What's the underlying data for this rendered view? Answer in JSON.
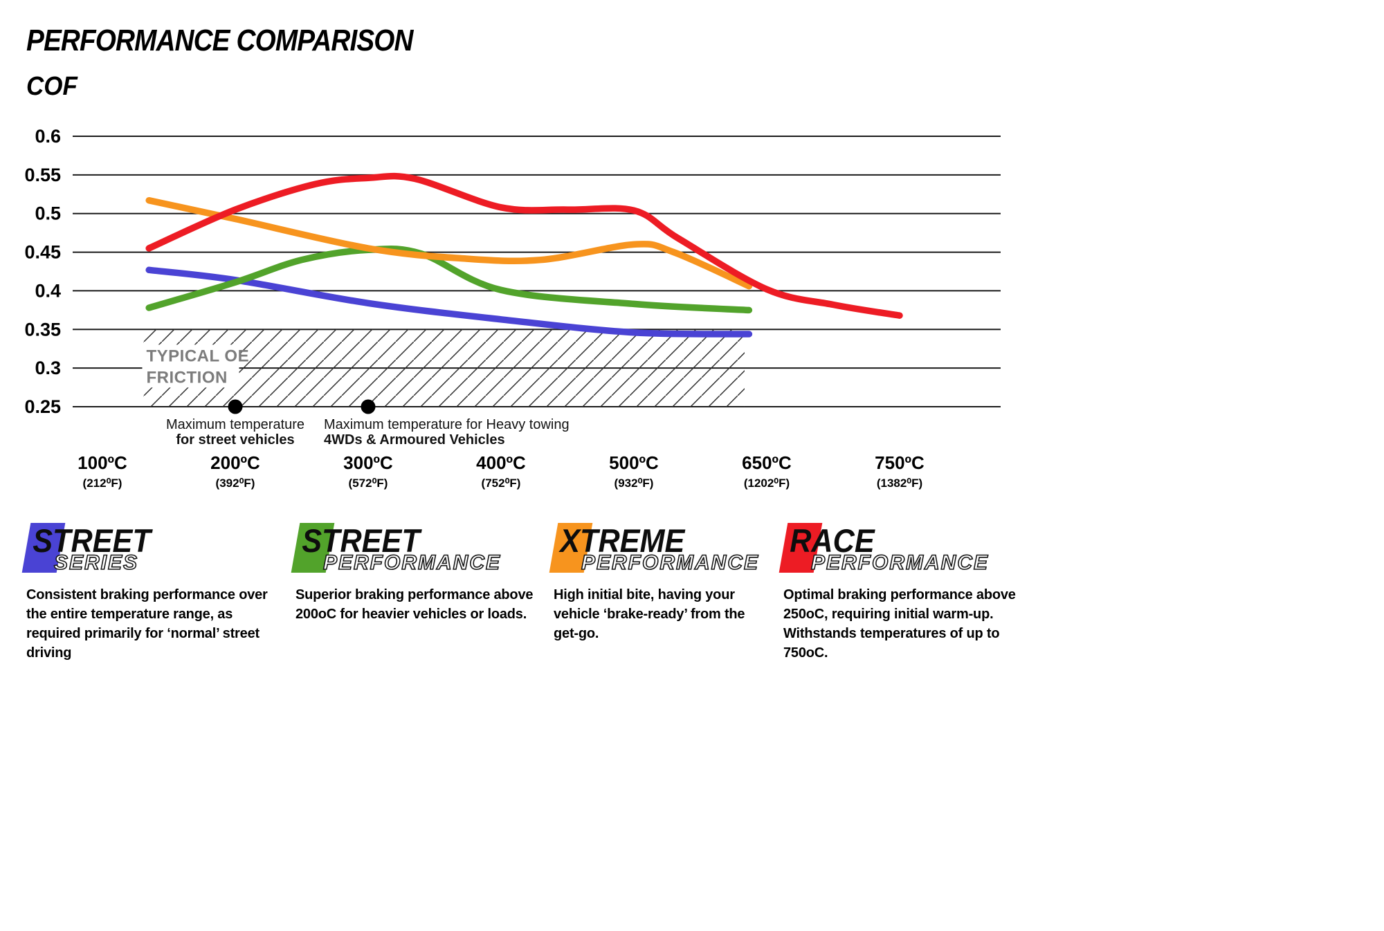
{
  "page": {
    "title": "PERFORMANCE COMPARISON",
    "y_axis_label": "COF"
  },
  "chart_data": {
    "type": "line",
    "title": "PERFORMANCE COMPARISON",
    "ylabel": "COF",
    "ylim": [
      0.25,
      0.6
    ],
    "grid": true,
    "legend_position": "bottom",
    "y_tick_values": [
      0.6,
      0.55,
      0.5,
      0.45,
      0.4,
      0.35,
      0.3,
      0.25
    ],
    "y_tick_labels": [
      "0.6",
      "0.55",
      "0.5",
      "0.45",
      "0.4",
      "0.35",
      "0.3",
      "0.25"
    ],
    "x_categories": [
      {
        "temp_c": 100,
        "label_c": "100ºC",
        "label_f": "(212⁰F)"
      },
      {
        "temp_c": 200,
        "label_c": "200ºC",
        "label_f": "(392⁰F)"
      },
      {
        "temp_c": 300,
        "label_c": "300ºC",
        "label_f": "(572⁰F)"
      },
      {
        "temp_c": 400,
        "label_c": "400ºC",
        "label_f": "(752⁰F)"
      },
      {
        "temp_c": 500,
        "label_c": "500ºC",
        "label_f": "(932⁰F)"
      },
      {
        "temp_c": 650,
        "label_c": "650ºC",
        "label_f": "(1202⁰F)"
      },
      {
        "temp_c": 750,
        "label_c": "750ºC",
        "label_f": "(1382⁰F)"
      }
    ],
    "series": [
      {
        "name": "Street Series",
        "color": "#4a43d4",
        "points": [
          [
            135,
            0.427
          ],
          [
            200,
            0.414
          ],
          [
            300,
            0.384
          ],
          [
            400,
            0.363
          ],
          [
            500,
            0.346
          ],
          [
            630,
            0.344
          ]
        ]
      },
      {
        "name": "Street Performance",
        "color": "#52a32b",
        "points": [
          [
            135,
            0.378
          ],
          [
            200,
            0.411
          ],
          [
            250,
            0.44
          ],
          [
            300,
            0.453
          ],
          [
            340,
            0.448
          ],
          [
            400,
            0.401
          ],
          [
            500,
            0.383
          ],
          [
            630,
            0.375
          ]
        ]
      },
      {
        "name": "Xtreme Performance",
        "color": "#f7941e",
        "points": [
          [
            135,
            0.517
          ],
          [
            200,
            0.493
          ],
          [
            300,
            0.455
          ],
          [
            370,
            0.442
          ],
          [
            430,
            0.44
          ],
          [
            500,
            0.46
          ],
          [
            545,
            0.45
          ],
          [
            630,
            0.406
          ]
        ]
      },
      {
        "name": "Race Performance",
        "color": "#ed1c24",
        "points": [
          [
            135,
            0.455
          ],
          [
            200,
            0.505
          ],
          [
            260,
            0.538
          ],
          [
            300,
            0.546
          ],
          [
            335,
            0.545
          ],
          [
            400,
            0.508
          ],
          [
            450,
            0.505
          ],
          [
            500,
            0.504
          ],
          [
            550,
            0.468
          ],
          [
            650,
            0.402
          ],
          [
            700,
            0.382
          ],
          [
            750,
            0.368
          ]
        ]
      }
    ],
    "oe_band": {
      "label_line1": "TYPICAL OE",
      "label_line2": "FRICTION",
      "y_from": 0.25,
      "y_to": 0.35,
      "temp_from": 131,
      "temp_to": 625
    },
    "markers": [
      {
        "temp_c": 200,
        "value": 0.25,
        "align": "middle",
        "line1": "Maximum temperature",
        "line2": "for street vehicles"
      },
      {
        "temp_c": 300,
        "value": 0.25,
        "align": "start",
        "line1": "Maximum temperature for Heavy towing",
        "line2": "4WDs & Armoured Vehicles"
      }
    ]
  },
  "legend": {
    "items": [
      {
        "main": "STREET",
        "sub": "SERIES",
        "color": "#4a43d4",
        "description": "Consistent braking performance over the entire temperature range, as required primarily for ‘normal’ street driving"
      },
      {
        "main": "STREET",
        "sub": "PERFORMANCE",
        "color": "#52a32b",
        "description": "Superior braking performance above 200oC for heavier vehicles or loads."
      },
      {
        "main": "XTREME",
        "sub": "PERFORMANCE",
        "color": "#f7941e",
        "description": "High initial bite, having your vehicle ‘brake-ready’ from the get-go."
      },
      {
        "main": "RACE",
        "sub": "PERFORMANCE",
        "color": "#ed1c24",
        "description": "Optimal braking performance above 250oC, requiring initial warm-up. Withstands temperatures of up to 750oC."
      }
    ]
  }
}
